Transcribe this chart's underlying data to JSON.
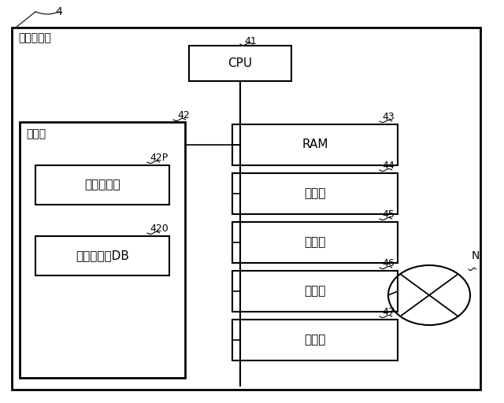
{
  "fig_label": "4",
  "server_label": "サーバ装置",
  "cpu_label": "CPU",
  "cpu_num": "41",
  "memory_label": "記憶部",
  "memory_num": "42",
  "prog_label": "プログラム",
  "prog_num": "42P",
  "db_label": "コンテンツDB",
  "db_num": "420",
  "right_boxes": [
    {
      "label": "RAM",
      "num": "43"
    },
    {
      "label": "入力部",
      "num": "44"
    },
    {
      "label": "表示部",
      "num": "45"
    },
    {
      "label": "通信部",
      "num": "46"
    },
    {
      "label": "計時部",
      "num": "47"
    }
  ],
  "network_label": "N",
  "bg_color": "#ffffff",
  "box_color": "#ffffff",
  "line_color": "#000000"
}
